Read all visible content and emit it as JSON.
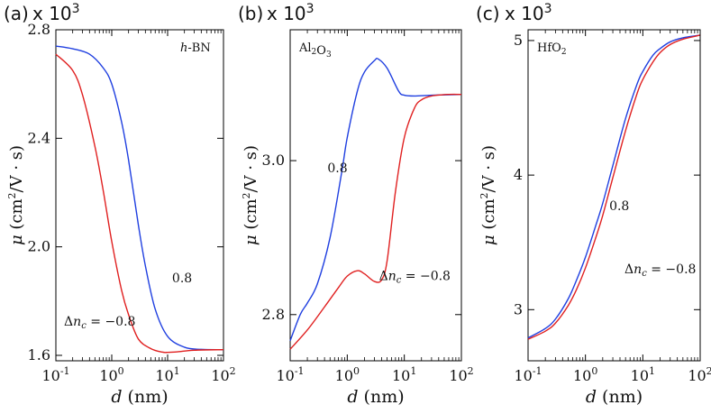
{
  "chart_data": [
    {
      "type": "line",
      "panel_label": "(a)",
      "multiplier": "x 10",
      "multiplier_exp": "3",
      "material": "h-BN",
      "xlabel": "d (nm)",
      "ylabel": "μ (cm²/V·s)",
      "xscale": "log",
      "xlim": [
        0.1,
        100
      ],
      "ylim": [
        1.58,
        2.8
      ],
      "xticks": [
        0.1,
        1,
        10,
        100
      ],
      "yticks": [
        1.6,
        2.0,
        2.4,
        2.8
      ],
      "ytick_labels": [
        "1.6",
        "2.0",
        "2.4",
        "2.8"
      ],
      "annotations": [
        {
          "text": "0.8",
          "x": 12,
          "y": 1.87
        },
        {
          "text": "Δn_c = −0.8",
          "x": 0.14,
          "y": 1.71
        }
      ],
      "series": [
        {
          "color": "#1f3fe0",
          "x": [
            0.1,
            0.2,
            0.4,
            0.7,
            1,
            1.5,
            2,
            3,
            4,
            6,
            10,
            20,
            40,
            100
          ],
          "y": [
            2.74,
            2.73,
            2.71,
            2.66,
            2.6,
            2.46,
            2.32,
            2.08,
            1.93,
            1.77,
            1.67,
            1.63,
            1.622,
            1.621
          ]
        },
        {
          "color": "#e02020",
          "x": [
            0.1,
            0.2,
            0.3,
            0.5,
            0.7,
            1,
            1.5,
            2,
            3,
            5,
            8,
            10,
            15,
            30,
            100
          ],
          "y": [
            2.71,
            2.65,
            2.56,
            2.37,
            2.21,
            2.02,
            1.84,
            1.75,
            1.66,
            1.625,
            1.612,
            1.611,
            1.613,
            1.619,
            1.621
          ]
        }
      ]
    },
    {
      "type": "line",
      "panel_label": "(b)",
      "multiplier": "x 10",
      "multiplier_exp": "3",
      "material": "Al2O3",
      "xlabel": "d (nm)",
      "ylabel": "μ (cm²/V·s)",
      "xscale": "log",
      "xlim": [
        0.1,
        100
      ],
      "ylim": [
        2.74,
        3.17
      ],
      "xticks": [
        0.1,
        1,
        10,
        100
      ],
      "yticks": [
        2.8,
        3.0
      ],
      "ytick_labels": [
        "2.8",
        "3.0"
      ],
      "annotations": [
        {
          "text": "0.8",
          "x": 0.45,
          "y": 2.985
        },
        {
          "text": "Δn_c = −0.8",
          "x": 3.6,
          "y": 2.845
        }
      ],
      "series": [
        {
          "color": "#1f3fe0",
          "x": [
            0.1,
            0.15,
            0.2,
            0.3,
            0.5,
            0.8,
            1,
            1.5,
            2,
            3,
            3.5,
            5,
            8,
            10,
            15,
            30,
            100
          ],
          "y": [
            2.766,
            2.8,
            2.815,
            2.84,
            2.9,
            2.985,
            3.03,
            3.09,
            3.115,
            3.13,
            3.132,
            3.12,
            3.09,
            3.085,
            3.084,
            3.085,
            3.086
          ]
        },
        {
          "color": "#e02020",
          "x": [
            0.1,
            0.2,
            0.4,
            0.7,
            1,
            1.5,
            2,
            3,
            4,
            5,
            7,
            10,
            15,
            20,
            30,
            60,
            100
          ],
          "y": [
            2.755,
            2.78,
            2.81,
            2.835,
            2.85,
            2.857,
            2.853,
            2.843,
            2.845,
            2.87,
            2.96,
            3.03,
            3.068,
            3.079,
            3.084,
            3.086,
            3.086
          ]
        }
      ]
    },
    {
      "type": "line",
      "panel_label": "(c)",
      "multiplier": "x 10",
      "multiplier_exp": "3",
      "material": "HfO2",
      "xlabel": "d (nm)",
      "ylabel": "μ (cm²/V·s)",
      "xscale": "log",
      "xlim": [
        0.1,
        100
      ],
      "ylim": [
        2.62,
        5.08
      ],
      "xticks": [
        0.1,
        1,
        10,
        100
      ],
      "yticks": [
        3,
        4,
        5
      ],
      "ytick_labels": [
        "3",
        "4",
        "5"
      ],
      "annotations": [
        {
          "text": "0.8",
          "x": 2.6,
          "y": 3.74
        },
        {
          "text": "Δn_c = −0.8",
          "x": 4.8,
          "y": 3.27
        }
      ],
      "series": [
        {
          "color": "#1f3fe0",
          "x": [
            0.1,
            0.2,
            0.3,
            0.5,
            0.7,
            1,
            1.5,
            2,
            3,
            5,
            8,
            10,
            15,
            20,
            30,
            50,
            100
          ],
          "y": [
            2.79,
            2.86,
            2.93,
            3.08,
            3.22,
            3.39,
            3.62,
            3.79,
            4.07,
            4.42,
            4.68,
            4.77,
            4.89,
            4.94,
            4.99,
            5.02,
            5.04
          ]
        },
        {
          "color": "#e02020",
          "x": [
            0.1,
            0.2,
            0.3,
            0.5,
            0.7,
            1,
            1.5,
            2,
            3,
            5,
            8,
            10,
            15,
            20,
            30,
            50,
            100
          ],
          "y": [
            2.78,
            2.84,
            2.9,
            3.03,
            3.15,
            3.31,
            3.53,
            3.7,
            3.98,
            4.33,
            4.61,
            4.71,
            4.84,
            4.91,
            4.97,
            5.01,
            5.04
          ]
        }
      ]
    }
  ]
}
